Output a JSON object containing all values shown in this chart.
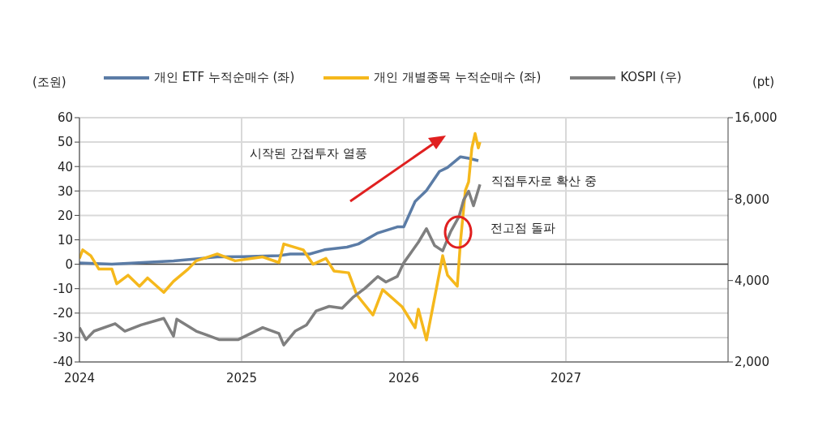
{
  "chart_data": {
    "type": "line",
    "ylabel": "(조원)",
    "y2label": "(pt)",
    "legend": "top",
    "grid": true,
    "log": "y2",
    "line_style": "solid",
    "marker": "none",
    "xlim": [
      2024,
      2028
    ],
    "xticks": [
      2024,
      2025,
      2026,
      2027
    ],
    "ylim": [
      -40,
      60
    ],
    "yticks": [
      -40,
      -30,
      -20,
      -10,
      0,
      10,
      20,
      30,
      40,
      50,
      60
    ],
    "y2lim": [
      2000,
      16000
    ],
    "y2ticks": [
      {
        "value": 2000,
        "label": "2,000"
      },
      {
        "value": 4000,
        "label": "4,000"
      },
      {
        "value": 8000,
        "label": "8,000"
      },
      {
        "value": 16000,
        "label": "16,000"
      }
    ],
    "ref_lines": [
      {
        "axis": "y",
        "value": 0,
        "color": "#404040"
      }
    ],
    "annotations": [
      "시작된 간접투자 열풍",
      "직접투자로 확산 중",
      "전고점 돌파"
    ],
    "series": [
      {
        "name": "개인 ETF 누적순매수 (좌)",
        "color": "#5b7ca6",
        "x": [
          2024.0,
          2024.2,
          2024.58,
          2024.85,
          2025.01,
          2025.23,
          2025.3,
          2025.42,
          2025.51,
          2025.65,
          2025.72,
          2025.84,
          2025.96,
          2026.0,
          2026.07,
          2026.14,
          2026.22,
          2026.27,
          2026.35,
          2026.4,
          2026.46
        ],
        "values": [
          0.5,
          0,
          1.4,
          3,
          3.1,
          3.5,
          4.2,
          4.2,
          5.9,
          7,
          8.3,
          12.8,
          15.3,
          15.3,
          25.7,
          30.2,
          38,
          39.6,
          44,
          43.4,
          42.4
        ]
      },
      {
        "name": "개인 개별종목 누적순매수 (좌)",
        "color": "#f5b81c",
        "x": [
          2024.0,
          2024.02,
          2024.07,
          2024.12,
          2024.2,
          2024.23,
          2024.3,
          2024.37,
          2024.42,
          2024.52,
          2024.58,
          2024.67,
          2024.72,
          2024.85,
          2024.96,
          2025.13,
          2025.23,
          2025.26,
          2025.38,
          2025.44,
          2025.52,
          2025.57,
          2025.66,
          2025.71,
          2025.81,
          2025.87,
          2025.99,
          2026.07,
          2026.09,
          2026.14,
          2026.2,
          2026.24,
          2026.27,
          2026.33,
          2026.35,
          2026.38,
          2026.4,
          2026.42,
          2026.44,
          2026.46,
          2026.47
        ],
        "values": [
          2.4,
          5.9,
          3.5,
          -2,
          -2,
          -8,
          -4.5,
          -9,
          -5.6,
          -11.5,
          -7,
          -2,
          1.4,
          4.2,
          1.4,
          3,
          0.7,
          8.3,
          5.9,
          0,
          2.4,
          -2.8,
          -3.5,
          -12.5,
          -20.8,
          -10.4,
          -17.4,
          -26,
          -18.4,
          -31,
          -10.4,
          3.5,
          -4.5,
          -9,
          9.4,
          30.2,
          33.7,
          47.6,
          53.5,
          47.6,
          50
        ]
      },
      {
        "name": "KOSPI (우)",
        "color": "#7f7f7f",
        "axis": "y2",
        "x": [
          2024.0,
          2024.04,
          2024.09,
          2024.22,
          2024.28,
          2024.38,
          2024.52,
          2024.58,
          2024.6,
          2024.72,
          2024.86,
          2024.98,
          2025.13,
          2025.23,
          2025.26,
          2025.33,
          2025.4,
          2025.46,
          2025.54,
          2025.62,
          2025.69,
          2025.76,
          2025.84,
          2025.89,
          2025.96,
          2026.0,
          2026.09,
          2026.14,
          2026.19,
          2026.24,
          2026.29,
          2026.34,
          2026.37,
          2026.4,
          2026.43,
          2026.47
        ],
        "values": [
          2680,
          2420,
          2600,
          2770,
          2600,
          2740,
          2900,
          2490,
          2880,
          2600,
          2420,
          2420,
          2680,
          2550,
          2310,
          2600,
          2740,
          3090,
          3210,
          3160,
          3480,
          3740,
          4140,
          3950,
          4140,
          4650,
          5540,
          6220,
          5390,
          5150,
          6080,
          6880,
          7960,
          8560,
          7560,
          9060
        ]
      }
    ]
  }
}
